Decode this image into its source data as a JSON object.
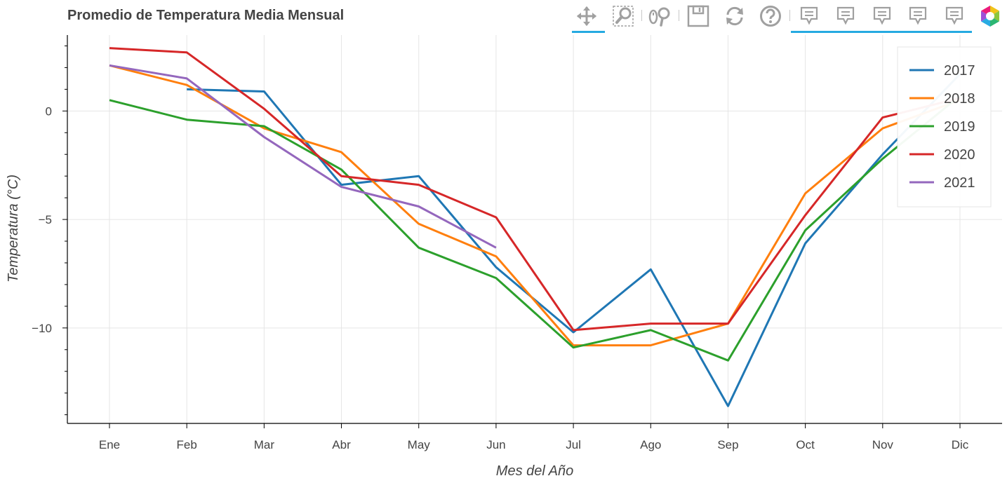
{
  "chart_data": {
    "type": "line",
    "title": "Promedio de Temperatura Media Mensual",
    "xlabel": "Mes del Año",
    "ylabel": "Temperatura (°C)",
    "categories": [
      "Ene",
      "Feb",
      "Mar",
      "Abr",
      "May",
      "Jun",
      "Jul",
      "Ago",
      "Sep",
      "Oct",
      "Nov",
      "Dic"
    ],
    "ylim": [
      -14.4,
      3.5
    ],
    "yticks": [
      0,
      -5,
      -10
    ],
    "ytick_labels": [
      "0",
      "−5",
      "−10"
    ],
    "grid": true,
    "legend_position": "top-right",
    "series": [
      {
        "name": "2017",
        "color": "#1f77b4",
        "values": [
          null,
          1.0,
          0.9,
          -3.4,
          -3.0,
          -7.2,
          -10.2,
          -7.3,
          -13.6,
          -6.1,
          -2.0,
          1.7
        ]
      },
      {
        "name": "2018",
        "color": "#ff7f0e",
        "values": [
          2.1,
          1.2,
          -0.8,
          -1.9,
          -5.2,
          -6.7,
          -10.8,
          -10.8,
          -9.8,
          -3.8,
          -0.8,
          0.5
        ]
      },
      {
        "name": "2019",
        "color": "#2ca02c",
        "values": [
          0.5,
          -0.4,
          -0.7,
          -2.7,
          -6.3,
          -7.7,
          -10.9,
          -10.1,
          -11.5,
          -5.5,
          -2.2,
          0.7
        ]
      },
      {
        "name": "2020",
        "color": "#d62728",
        "values": [
          2.9,
          2.7,
          0.1,
          -3.0,
          -3.4,
          -4.9,
          -10.1,
          -9.8,
          -9.8,
          -4.8,
          -0.3,
          0.6
        ]
      },
      {
        "name": "2021",
        "color": "#9467bd",
        "values": [
          2.1,
          1.5,
          -1.2,
          -3.5,
          -4.4,
          -6.3,
          null,
          null,
          null,
          null,
          null,
          null
        ]
      }
    ]
  },
  "toolbar": {
    "tools": [
      "pan-icon",
      "box-zoom-icon",
      "wheel-zoom-icon",
      "save-icon",
      "reset-icon",
      "help-icon",
      "hover-icon",
      "hover-icon",
      "hover-icon",
      "hover-icon",
      "hover-icon",
      "bokeh-logo"
    ]
  }
}
